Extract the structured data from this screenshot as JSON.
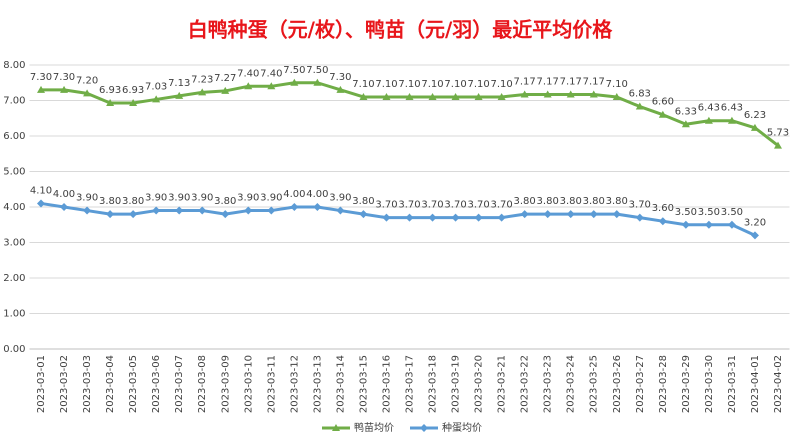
{
  "chart_data": {
    "type": "line",
    "title": "白鸭种蛋（元/枚）、鸭苗（元/羽）最近平均价格",
    "categories": [
      "2023-03-01",
      "2023-03-02",
      "2023-03-03",
      "2023-03-04",
      "2023-03-05",
      "2023-03-06",
      "2023-03-07",
      "2023-03-08",
      "2023-03-09",
      "2023-03-10",
      "2023-03-11",
      "2023-03-12",
      "2023-03-13",
      "2023-03-14",
      "2023-03-15",
      "2023-03-16",
      "2023-03-17",
      "2023-03-18",
      "2023-03-19",
      "2023-03-20",
      "2023-03-21",
      "2023-03-22",
      "2023-03-23",
      "2023-03-24",
      "2023-03-25",
      "2023-03-26",
      "2023-03-27",
      "2023-03-28",
      "2023-03-29",
      "2023-03-30",
      "2023-03-31",
      "2023-04-01",
      "2023-04-02"
    ],
    "series": [
      {
        "name": "鸭苗均价",
        "color": "#70ad47",
        "marker": "triangle",
        "values": [
          7.3,
          7.3,
          7.2,
          6.93,
          6.93,
          7.03,
          7.13,
          7.23,
          7.27,
          7.4,
          7.4,
          7.5,
          7.5,
          7.3,
          7.1,
          7.1,
          7.1,
          7.1,
          7.1,
          7.1,
          7.1,
          7.17,
          7.17,
          7.17,
          7.17,
          7.1,
          6.83,
          6.6,
          6.33,
          6.43,
          6.43,
          6.23,
          5.73
        ],
        "value_labels": [
          "7.30",
          "7.30",
          "7.20",
          "6.93",
          "6.93",
          "7.03",
          "7.13",
          "7.23",
          "7.27",
          "7.40",
          "7.40",
          "7.50",
          "7.50",
          "7.30",
          "7.10",
          "7.10",
          "7.10",
          "7.10",
          "7.10",
          "7.10",
          "7.10",
          "7.17",
          "7.17",
          "7.17",
          "7.17",
          "7.10",
          "6.83",
          "6.60",
          "6.33",
          "6.43",
          "6.43",
          "6.23",
          "5.73"
        ]
      },
      {
        "name": "种蛋均价",
        "color": "#5b9bd5",
        "marker": "diamond",
        "values": [
          4.1,
          4.0,
          3.9,
          3.8,
          3.8,
          3.9,
          3.9,
          3.9,
          3.8,
          3.9,
          3.9,
          4.0,
          4.0,
          3.9,
          3.8,
          3.7,
          3.7,
          3.7,
          3.7,
          3.7,
          3.7,
          3.8,
          3.8,
          3.8,
          3.8,
          3.8,
          3.7,
          3.6,
          3.5,
          3.5,
          3.5,
          3.2,
          null
        ],
        "value_labels": [
          "4.10",
          "4.00",
          "3.90",
          "3.80",
          "3.80",
          "3.90",
          "3.90",
          "3.90",
          "3.80",
          "3.90",
          "3.90",
          "4.00",
          "4.00",
          "3.90",
          "3.80",
          "3.70",
          "3.70",
          "3.70",
          "3.70",
          "3.70",
          "3.70",
          "3.80",
          "3.80",
          "3.80",
          "3.80",
          "3.80",
          "3.70",
          "3.60",
          "3.50",
          "3.50",
          "3.50",
          "3.20",
          null
        ]
      }
    ],
    "ylim": [
      0,
      8
    ],
    "yticks": [
      {
        "value": 0,
        "label": "0.00"
      },
      {
        "value": 1,
        "label": "1.00"
      },
      {
        "value": 2,
        "label": "2.00"
      },
      {
        "value": 3,
        "label": "3.00"
      },
      {
        "value": 4,
        "label": "4.00"
      },
      {
        "value": 5,
        "label": "5.00"
      },
      {
        "value": 6,
        "label": "6.00"
      },
      {
        "value": 7,
        "label": "7.00"
      },
      {
        "value": 8,
        "label": "8.00"
      }
    ],
    "grid": true,
    "legend": "bottom"
  }
}
